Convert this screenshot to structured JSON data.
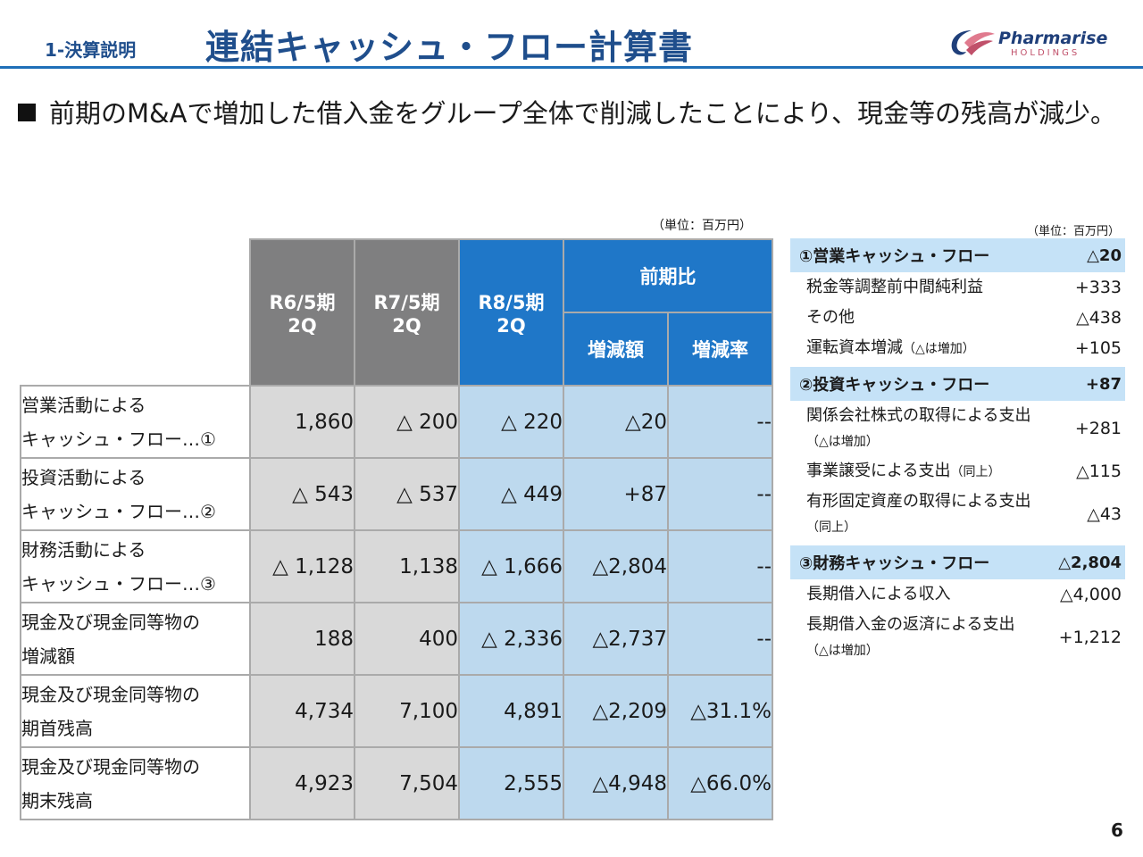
{
  "header": {
    "section": "1-決算説明",
    "title": "連結キャッシュ・フロー計算書",
    "logo_name": "Pharmarise",
    "logo_sub": "HOLDINGS"
  },
  "lead": "前期のM&Aで増加した借入金をグループ全体で削減したことにより、現金等の残高が減少。",
  "unit_left": "（単位：百万円）",
  "unit_right": "（単位：百万円）",
  "table": {
    "headers": {
      "c1": [
        "R6/5期",
        "2Q"
      ],
      "c2": [
        "R7/5期",
        "2Q"
      ],
      "c3": [
        "R8/5期",
        "2Q"
      ],
      "group": "前期比",
      "sub1": "増減額",
      "sub2": "増減率"
    },
    "rows": [
      {
        "label": [
          "営業活動による",
          "キャッシュ・フロー…①"
        ],
        "v": [
          "1,860",
          "△ 200",
          "△ 220",
          "△20",
          "--"
        ]
      },
      {
        "label": [
          "投資活動による",
          "キャッシュ・フロー…②"
        ],
        "v": [
          "△ 543",
          "△ 537",
          "△ 449",
          "+87",
          "--"
        ]
      },
      {
        "label": [
          "財務活動による",
          "キャッシュ・フロー…③"
        ],
        "v": [
          "△ 1,128",
          "1,138",
          "△ 1,666",
          "△2,804",
          "--"
        ]
      },
      {
        "label": [
          "現金及び現金同等物の",
          "増減額"
        ],
        "v": [
          "188",
          "400",
          "△ 2,336",
          "△2,737",
          "--"
        ]
      },
      {
        "label": [
          "現金及び現金同等物の",
          "期首残高"
        ],
        "v": [
          "4,734",
          "7,100",
          "4,891",
          "△2,209",
          "△31.1%"
        ]
      },
      {
        "label": [
          "現金及び現金同等物の",
          "期末残高"
        ],
        "v": [
          "4,923",
          "7,504",
          "2,555",
          "△4,948",
          "△66.0%"
        ]
      }
    ]
  },
  "panel": {
    "op": {
      "title": "①営業キャッシュ・フロー",
      "value": "△20",
      "items": [
        {
          "label": "税金等調整前中間純利益",
          "value": "+333"
        },
        {
          "label": "その他",
          "value": "△438"
        },
        {
          "label": "運転資本増減",
          "note": "（△は増加）",
          "value": "+105"
        }
      ]
    },
    "inv": {
      "title": "②投資キャッシュ・フロー",
      "value": "+87",
      "items": [
        {
          "label": "関係会社株式の取得による支出",
          "note": "（△は増加）",
          "value": "+281"
        },
        {
          "label": "事業譲受による支出",
          "note": "（同上）",
          "value": "△115"
        },
        {
          "label": "有形固定資産の取得による支出",
          "note": "（同上）",
          "value": "△43"
        }
      ]
    },
    "fin": {
      "title": "③財務キャッシュ・フロー",
      "value": "△2,804",
      "items": [
        {
          "label": "長期借入による収入",
          "value": "△4,000"
        },
        {
          "label": "長期借入金の返済による支出",
          "note": "（△は増加）",
          "value": "+1,212"
        }
      ]
    }
  },
  "page_number": "6"
}
